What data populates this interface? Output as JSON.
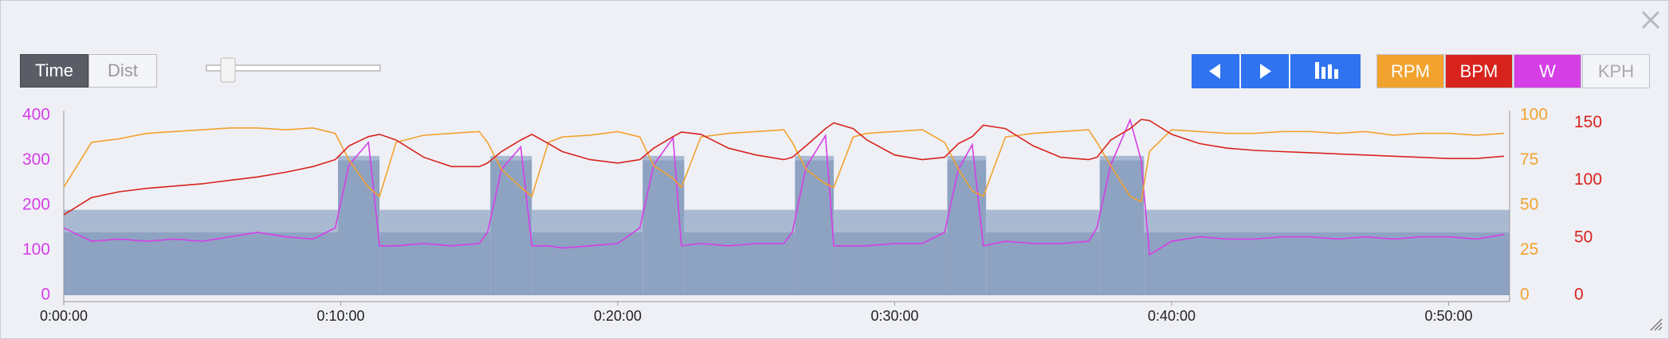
{
  "ui": {
    "time": "Time",
    "dist": "Dist",
    "kph": "KPH"
  },
  "chart_data": {
    "type": "line",
    "x": [
      0,
      1,
      2,
      3,
      4,
      5,
      6,
      7,
      8,
      9,
      9.8,
      10.3,
      11,
      11.4,
      12,
      13,
      14,
      15,
      15.3,
      15.8,
      16.5,
      16.9,
      17.5,
      18,
      19,
      20,
      20.8,
      21.3,
      22,
      22.3,
      23,
      24,
      25,
      26,
      26.3,
      26.8,
      27.5,
      27.8,
      28.5,
      29,
      30,
      31,
      31.8,
      32.3,
      32.8,
      33.2,
      34,
      35,
      36,
      37,
      37.3,
      37.8,
      38.5,
      38.9,
      39.2,
      40,
      41,
      42,
      43,
      44,
      45,
      46,
      47,
      48,
      49,
      50,
      51,
      52
    ],
    "xlim": [
      0,
      52.2
    ],
    "xticks": [
      {
        "value": 0,
        "label": "0:00:00"
      },
      {
        "value": 10,
        "label": "0:10:00"
      },
      {
        "value": 20,
        "label": "0:20:00"
      },
      {
        "value": 30,
        "label": "0:30:00"
      },
      {
        "value": 40,
        "label": "0:40:00"
      },
      {
        "value": 50,
        "label": "0:50:00"
      }
    ],
    "ylim": [
      0,
      400
    ],
    "yticks": [
      0,
      100,
      200,
      300,
      400
    ],
    "y2lim": [
      0,
      100
    ],
    "y2ticks": [
      0,
      25,
      50,
      75,
      100
    ],
    "y3lim": [
      0,
      156.5
    ],
    "y3ticks": [
      0,
      50,
      100,
      150
    ],
    "blocks": [
      {
        "start": 0,
        "end": 9.9,
        "low": 140,
        "high": 190
      },
      {
        "start": 9.9,
        "end": 11.4,
        "low": 300,
        "high": 310
      },
      {
        "start": 11.4,
        "end": 15.4,
        "low": 140,
        "high": 190
      },
      {
        "start": 15.4,
        "end": 16.9,
        "low": 300,
        "high": 310
      },
      {
        "start": 16.9,
        "end": 20.9,
        "low": 140,
        "high": 190
      },
      {
        "start": 20.9,
        "end": 22.4,
        "low": 300,
        "high": 310
      },
      {
        "start": 22.4,
        "end": 26.4,
        "low": 140,
        "high": 190
      },
      {
        "start": 26.4,
        "end": 27.8,
        "low": 300,
        "high": 310
      },
      {
        "start": 27.8,
        "end": 31.9,
        "low": 140,
        "high": 190
      },
      {
        "start": 31.9,
        "end": 33.3,
        "low": 300,
        "high": 310
      },
      {
        "start": 33.3,
        "end": 37.4,
        "low": 140,
        "high": 190
      },
      {
        "start": 37.4,
        "end": 39,
        "low": 300,
        "high": 310
      },
      {
        "start": 39,
        "end": 52.2,
        "low": 140,
        "high": 190
      }
    ],
    "series": [
      {
        "name": "W",
        "color": "#d63ee6",
        "axis": "y",
        "values": [
          150,
          120,
          125,
          120,
          125,
          120,
          130,
          140,
          130,
          125,
          150,
          290,
          340,
          110,
          110,
          115,
          110,
          115,
          140,
          280,
          330,
          110,
          110,
          105,
          110,
          115,
          150,
          290,
          350,
          110,
          115,
          110,
          115,
          115,
          140,
          285,
          355,
          110,
          110,
          110,
          115,
          115,
          140,
          280,
          335,
          110,
          120,
          115,
          115,
          120,
          150,
          290,
          390,
          300,
          90,
          120,
          130,
          125,
          125,
          130,
          130,
          125,
          130,
          125,
          130,
          130,
          125,
          135
        ]
      },
      {
        "name": "RPM",
        "color": "#f2a22e",
        "axis": "y2",
        "values": [
          60,
          85,
          87,
          90,
          91,
          92,
          93,
          93,
          92,
          93,
          90,
          75,
          60,
          55,
          85,
          89,
          90,
          91,
          85,
          70,
          60,
          55,
          85,
          88,
          89,
          91,
          88,
          72,
          65,
          60,
          88,
          90,
          91,
          92,
          85,
          70,
          62,
          60,
          88,
          90,
          91,
          92,
          85,
          70,
          58,
          55,
          88,
          90,
          91,
          92,
          85,
          72,
          55,
          52,
          80,
          92,
          91,
          90,
          90,
          91,
          91,
          90,
          91,
          89,
          90,
          90,
          89,
          90
        ]
      },
      {
        "name": "BPM",
        "color": "#d8231c",
        "axis": "y3",
        "values": [
          70,
          85,
          90,
          93,
          95,
          97,
          100,
          103,
          107,
          112,
          118,
          130,
          138,
          140,
          135,
          120,
          112,
          112,
          115,
          125,
          135,
          140,
          132,
          125,
          118,
          115,
          118,
          128,
          138,
          142,
          140,
          128,
          122,
          118,
          120,
          130,
          145,
          150,
          145,
          135,
          122,
          118,
          120,
          132,
          138,
          148,
          145,
          130,
          120,
          118,
          120,
          135,
          145,
          153,
          152,
          140,
          132,
          128,
          126,
          125,
          124,
          123,
          122,
          121,
          120,
          119,
          119,
          121
        ]
      }
    ]
  }
}
